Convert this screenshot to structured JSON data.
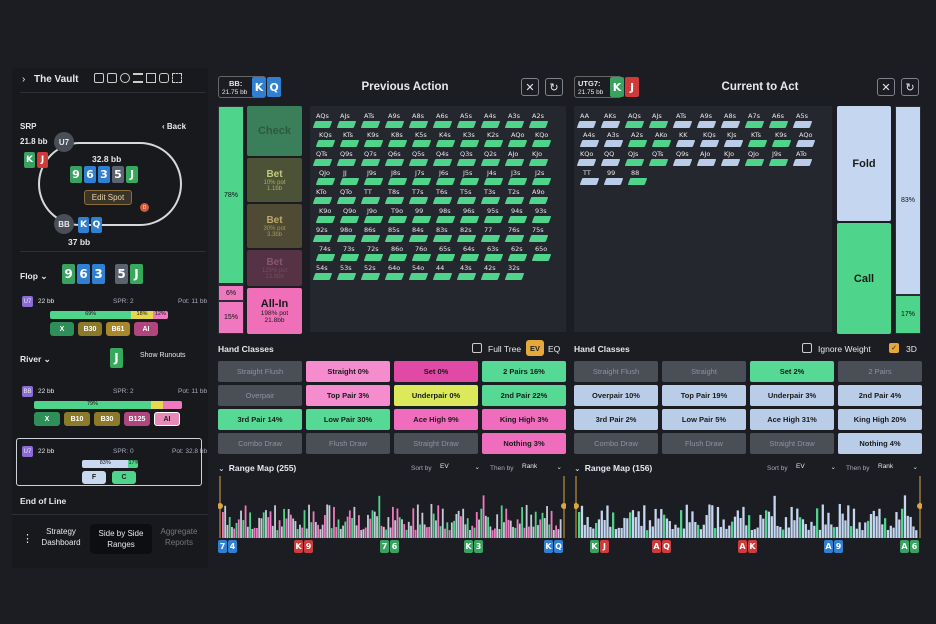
{
  "sidebar": {
    "title": "The Vault",
    "node_label": "SRP",
    "back_label": "Back",
    "utg": {
      "pos": "U7",
      "stack": "21.8 bb",
      "cards": [
        "K",
        "J"
      ]
    },
    "bb": {
      "pos": "BB",
      "stack": "37 bb",
      "cards": [
        "K",
        "Q"
      ]
    },
    "pot": "32.8 bb",
    "board": [
      "9",
      "6",
      "3",
      "5",
      "J"
    ],
    "edit_spot": "Edit Spot",
    "dealer": "D",
    "flop_label": "Flop",
    "flop_cards": [
      "9",
      "6",
      "3",
      "5",
      "J"
    ],
    "flop_node": {
      "pos": "U7",
      "stack": "22 bb",
      "spr": "SPR: 2",
      "pot": "Pot: 11 bb",
      "pcts": [
        "69%",
        "18%",
        "12%"
      ],
      "actions": [
        "X",
        "B30",
        "B61",
        "AI"
      ]
    },
    "river_label": "River",
    "river_card": "J",
    "show_runouts": "Show Runouts",
    "river_node": {
      "pos": "BB",
      "stack": "22 bb",
      "spr": "SPR: 2",
      "pot": "Pot: 11 bb",
      "pct": "79%",
      "actions": [
        "X",
        "B10",
        "B30",
        "B125",
        "AI"
      ]
    },
    "final_node": {
      "pos": "U7",
      "stack": "22 bb",
      "spr": "SPR: 0",
      "pot": "Pot: 32.8 bb",
      "pcts": [
        "83%",
        "17%"
      ],
      "actions": [
        "F",
        "C"
      ]
    },
    "end_of_line": "End of Line",
    "tabs": [
      {
        "label": "Strategy\nDashboard"
      },
      {
        "label": "Side by Side\nRanges"
      },
      {
        "label": "Aggregate\nReports"
      }
    ]
  },
  "left_panel": {
    "player": "BB:",
    "stack": "21.75 bb",
    "cards": [
      "K",
      "Q"
    ],
    "title": "Previous Action",
    "bars": [
      "78%",
      "6%",
      "15%"
    ],
    "actions": [
      {
        "label": "Check",
        "sub": ""
      },
      {
        "label": "Bet",
        "sub": "10% pot\n1.1bb"
      },
      {
        "label": "Bet",
        "sub": "30% pot\n3.3bb"
      },
      {
        "label": "Bet",
        "sub": "125% pot\n13.8bb"
      },
      {
        "label": "All-In",
        "sub": "198% pot\n21.8bb"
      }
    ],
    "hand_classes_label": "Hand Classes",
    "full_tree": "Full Tree",
    "ev": "EV",
    "eq": "EQ",
    "classes": [
      [
        "Straight Flush",
        "Straight 0%",
        "Set 0%",
        "2 Pairs 16%"
      ],
      [
        "Overpair",
        "Top Pair 3%",
        "Underpair 0%",
        "2nd Pair 22%"
      ],
      [
        "3rd Pair 14%",
        "Low Pair 30%",
        "Ace High 9%",
        "King High 3%"
      ],
      [
        "Combo Draw",
        "Flush Draw",
        "Straight Draw",
        "Nothing 3%"
      ]
    ],
    "range_map": "Range Map (255)",
    "sort_by": "Sort by",
    "sort_val": "EV",
    "then_by": "Then by",
    "then_val": "Rank",
    "hands": [
      [
        "7",
        "4"
      ],
      [
        "K",
        "9"
      ],
      [
        "7",
        "6"
      ],
      [
        "K",
        "3"
      ],
      [
        "K",
        "Q"
      ]
    ]
  },
  "right_panel": {
    "player": "UTG7:",
    "stack": "21.75 bb",
    "cards": [
      "K",
      "J"
    ],
    "title": "Current to Act",
    "actions": [
      "Fold",
      "Call"
    ],
    "bars": [
      "83%",
      "17%"
    ],
    "hand_classes_label": "Hand Classes",
    "ignore_weight": "Ignore Weight",
    "three_d": "3D",
    "classes": [
      [
        "Straight Flush",
        "Straight",
        "Set 2%",
        "2 Pairs"
      ],
      [
        "Overpair 10%",
        "Top Pair 19%",
        "Underpair 3%",
        "2nd Pair 4%"
      ],
      [
        "3rd Pair 2%",
        "Low Pair 5%",
        "Ace High 31%",
        "King High 20%"
      ],
      [
        "Combo Draw",
        "Flush Draw",
        "Straight Draw",
        "Nothing 4%"
      ]
    ],
    "range_map": "Range Map (156)",
    "sort_by": "Sort by",
    "sort_val": "EV",
    "then_by": "Then by",
    "then_val": "Rank",
    "hands": [
      [
        "K",
        "J"
      ],
      [
        "A",
        "Q"
      ],
      [
        "A",
        "K"
      ],
      [
        "A",
        "9"
      ],
      [
        "A",
        "6"
      ]
    ]
  },
  "grid_left_labels": [
    "AQs",
    "AJs",
    "ATs",
    "A9s",
    "A8s",
    "A6s",
    "A5s",
    "A4s",
    "A3s",
    "A2s",
    "KQs",
    "KTs",
    "K9s",
    "K8s",
    "K5s",
    "K4s",
    "K3s",
    "K2s",
    "AQo",
    "KQo",
    "QTs",
    "Q9s",
    "Q7s",
    "Q6s",
    "Q5s",
    "Q4s",
    "Q3s",
    "Q2s",
    "AJo",
    "KJo",
    "QJo",
    "JJ",
    "J9s",
    "J8s",
    "J7s",
    "J6s",
    "J5s",
    "J4s",
    "J3s",
    "J2s",
    "KTo",
    "QTo",
    "TT",
    "T8s",
    "T7s",
    "T6s",
    "T5s",
    "T3s",
    "T2s",
    "A9o",
    "K9o",
    "Q9o",
    "J9o",
    "T9o",
    "99",
    "98s",
    "96s",
    "95s",
    "94s",
    "93s",
    "92s",
    "98o",
    "86s",
    "85s",
    "84s",
    "83s",
    "82s",
    "77",
    "76s",
    "75s",
    "74s",
    "73s",
    "72s",
    "86o",
    "76o",
    "65s",
    "64s",
    "63s",
    "62s",
    "65o",
    "54s",
    "53s",
    "52s",
    "64o",
    "54o",
    "44",
    "43s",
    "42s",
    "32s"
  ],
  "grid_right_labels": [
    "AA",
    "AKs",
    "AQs",
    "AJs",
    "ATs",
    "A9s",
    "A8s",
    "A7s",
    "A6s",
    "A5s",
    "A4s",
    "A3s",
    "A2s",
    "AKo",
    "KK",
    "KQs",
    "KJs",
    "KTs",
    "K9s",
    "AQo",
    "KQo",
    "QQ",
    "QJs",
    "QTs",
    "Q9s",
    "AJo",
    "KJo",
    "QJo",
    "J9s",
    "ATo",
    "TT",
    "99",
    "88"
  ]
}
